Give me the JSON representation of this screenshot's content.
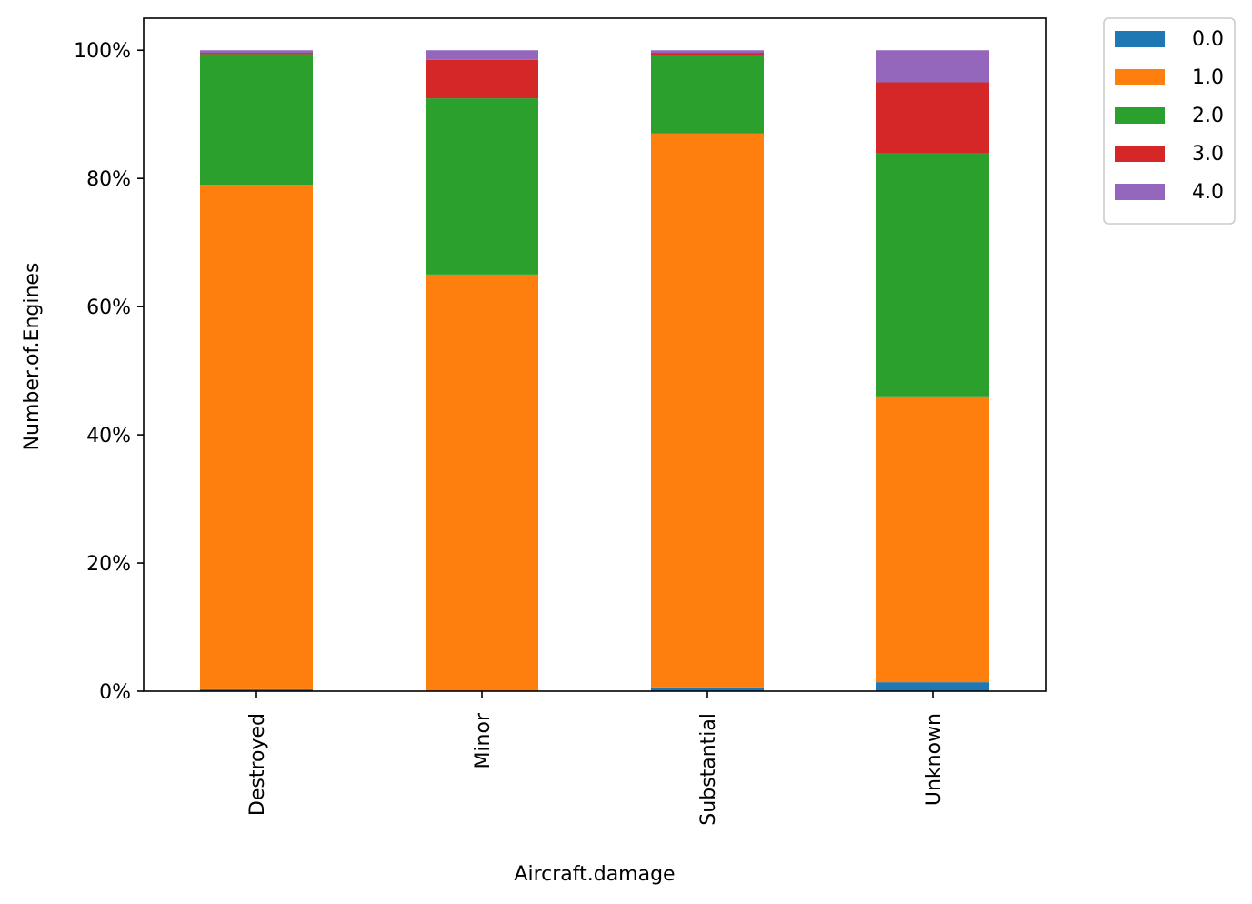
{
  "chart_data": {
    "type": "bar",
    "stacked": true,
    "normalized": true,
    "categories": [
      "Destroyed",
      "Minor",
      "Substantial",
      "Unknown"
    ],
    "series": [
      {
        "name": "0.0",
        "color": "#1f77b4",
        "values": [
          0.3,
          0.0,
          0.6,
          1.4
        ]
      },
      {
        "name": "1.0",
        "color": "#ff7f0e",
        "values": [
          78.7,
          65.0,
          86.4,
          44.6
        ]
      },
      {
        "name": "2.0",
        "color": "#2ca02c",
        "values": [
          20.4,
          27.5,
          12.1,
          38.0
        ]
      },
      {
        "name": "3.0",
        "color": "#d62728",
        "values": [
          0.2,
          6.0,
          0.5,
          11.0
        ]
      },
      {
        "name": "4.0",
        "color": "#9467bd",
        "values": [
          0.4,
          1.5,
          0.4,
          5.0
        ]
      }
    ],
    "xlabel": "Aircraft.damage",
    "ylabel": "Number.of.Engines",
    "ylim": [
      0,
      105
    ],
    "yticks": [
      0,
      20,
      40,
      60,
      80,
      100
    ],
    "ytick_format": "percent",
    "grid": false,
    "legend_position": "outside-top-right"
  }
}
